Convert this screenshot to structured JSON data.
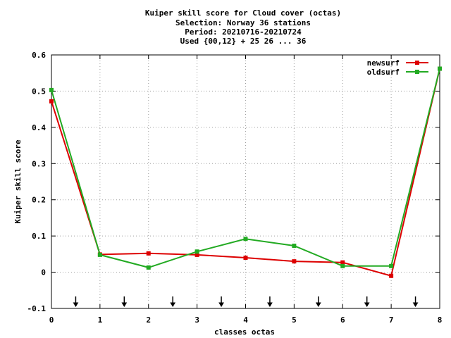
{
  "chart_data": {
    "type": "line",
    "title_lines": [
      "Kuiper skill score  for Cloud cover (octas)",
      "Selection: Norway     36 stations",
      "Period: 20210716-20210724",
      "Used {00,12} + 25 26 ... 36"
    ],
    "xlabel": "classes octas",
    "ylabel": "Kuiper skill score",
    "xlim": [
      0,
      8
    ],
    "ylim": [
      -0.1,
      0.6
    ],
    "x_ticks": [
      "0",
      "1",
      "2",
      "3",
      "4",
      "5",
      "6",
      "7",
      "8"
    ],
    "y_ticks": [
      "-0.1",
      "0",
      "0.1",
      "0.2",
      "0.3",
      "0.4",
      "0.5",
      "0.6"
    ],
    "grid": true,
    "legend_position": "top-right",
    "arrow_x": [
      0.5,
      1.5,
      2.5,
      3.5,
      4.5,
      5.5,
      6.5,
      7.5
    ],
    "series": [
      {
        "name": "newsurf",
        "color": "#dd0000",
        "x": [
          0,
          1,
          2,
          3,
          4,
          5,
          6,
          7,
          8
        ],
        "values": [
          0.472,
          0.049,
          0.052,
          0.048,
          0.04,
          0.03,
          0.027,
          -0.01,
          0.562
        ]
      },
      {
        "name": "oldsurf",
        "color": "#22aa22",
        "x": [
          0,
          1,
          2,
          3,
          4,
          5,
          6,
          7,
          8
        ],
        "values": [
          0.503,
          0.048,
          0.013,
          0.057,
          0.092,
          0.073,
          0.017,
          0.017,
          0.562
        ]
      }
    ]
  }
}
